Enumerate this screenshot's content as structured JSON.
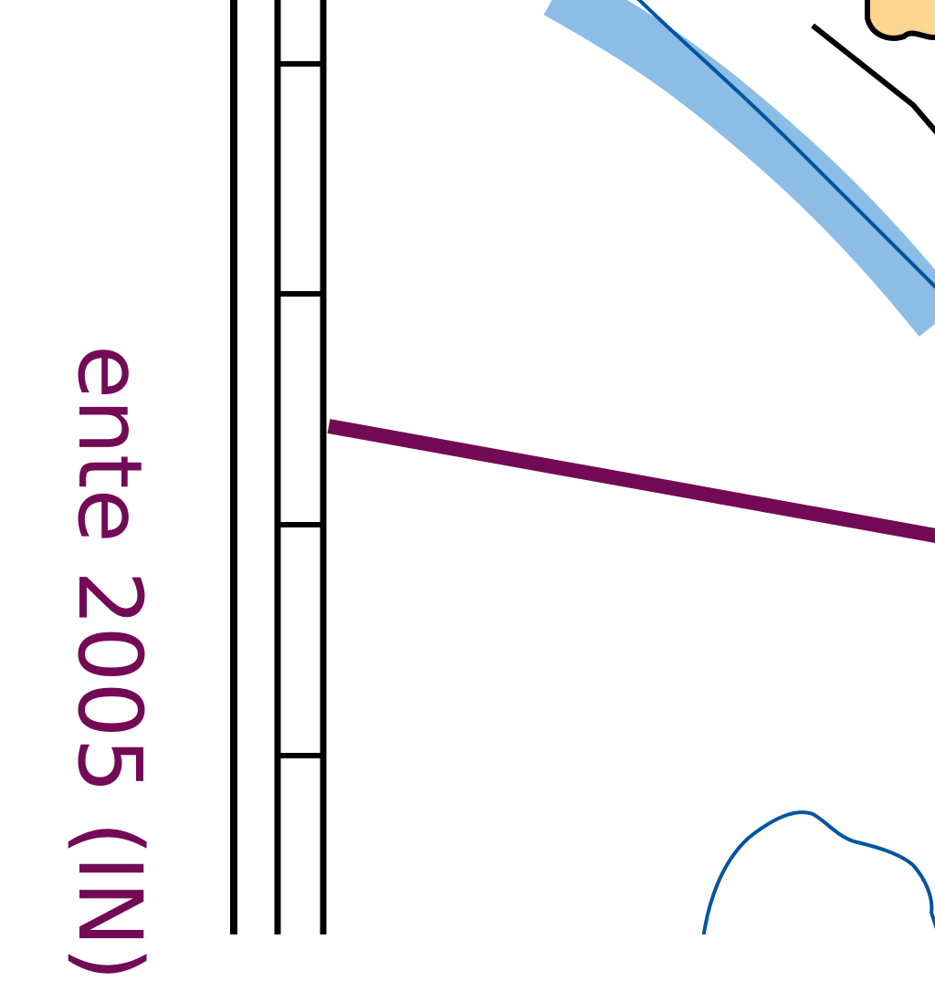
{
  "map": {
    "side_label": "ente 2005 (IN)",
    "colors": {
      "label": "#730a55",
      "boundary": "#730a55",
      "river_fill": "#8cbde6",
      "river_line": "#0055a0",
      "lake_outline": "#0055a0",
      "settlement_fill": "#ffd590",
      "frame": "#000000"
    },
    "icons": [
      "scale-bar-frame",
      "river",
      "boundary-line",
      "lake-outline",
      "settlement-area"
    ]
  }
}
